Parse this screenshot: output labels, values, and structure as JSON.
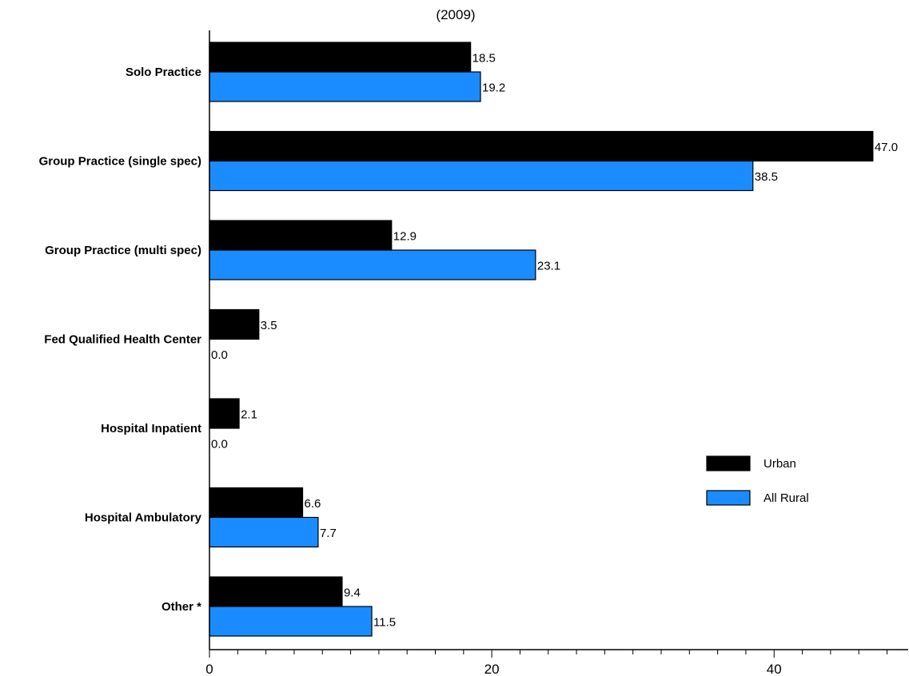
{
  "chart_data": {
    "type": "bar",
    "orientation": "horizontal",
    "subtitle": "(2009)",
    "categories": [
      "Solo Practice",
      "Group Practice (single spec)",
      "Group Practice (multi spec)",
      "Fed Qualified Health Center",
      "Hospital Inpatient",
      "Hospital Ambulatory",
      "Other *"
    ],
    "series": [
      {
        "name": "Urban",
        "color": "#000000",
        "values": [
          18.5,
          47.0,
          12.9,
          3.5,
          2.1,
          6.6,
          9.4
        ]
      },
      {
        "name": "All Rural",
        "color": "#1a8cff",
        "values": [
          19.2,
          38.5,
          23.1,
          0.0,
          0.0,
          7.7,
          11.5
        ]
      }
    ],
    "value_labels": [
      [
        "18.5",
        "47.0",
        "12.9",
        "3.5",
        "2.1",
        "6.6",
        "9.4"
      ],
      [
        "19.2",
        "38.5",
        "23.1",
        "0.0",
        "0.0",
        "7.7",
        "11.5"
      ]
    ],
    "x_ticks": [
      "0",
      "20",
      "40"
    ],
    "xlim": [
      0,
      49.5
    ],
    "legend_position": "right",
    "grid": false
  }
}
